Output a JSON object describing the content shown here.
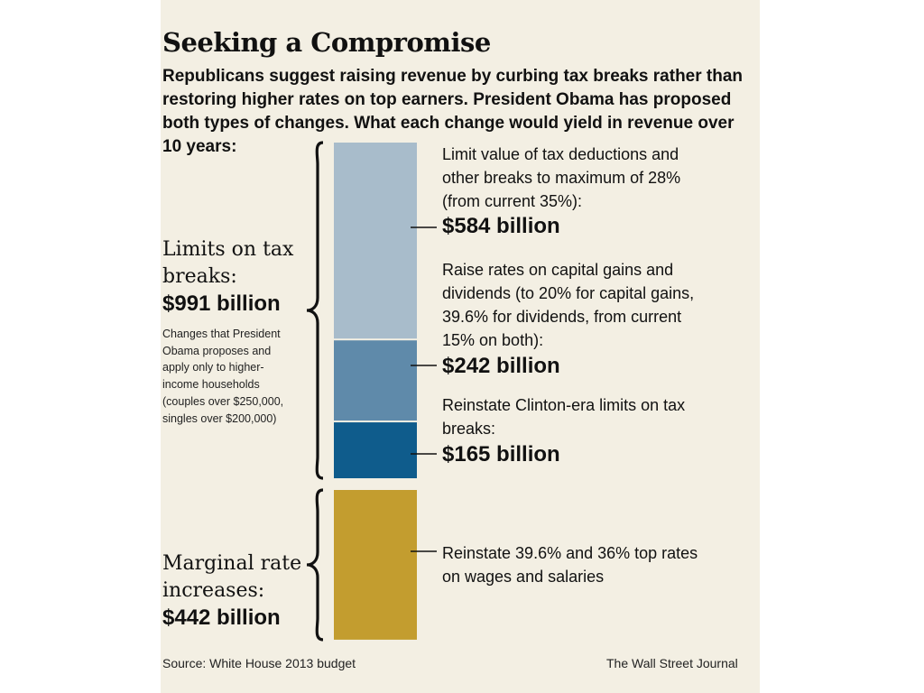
{
  "title": "Seeking a Compromise",
  "subtitle": "Republicans suggest raising revenue by curbing tax breaks rather than restoring higher rates on top earners. President Obama has proposed both types of changes. What each change would yield in revenue over 10 years:",
  "groups": [
    {
      "label_lines": [
        "Limits on tax",
        "breaks:"
      ],
      "total": "$991 billion",
      "note": "Changes that President Obama proposes and apply only to higher-income households (couples over $250,000, singles over $200,000)"
    },
    {
      "label_lines": [
        "Marginal rate",
        "increases:"
      ],
      "total": "$442 billion"
    }
  ],
  "items": [
    {
      "desc_lines": [
        "Limit value of tax deductions and",
        "other breaks to maximum of 28%",
        "(from current 35%):"
      ],
      "value_label": "$584 billion"
    },
    {
      "desc_lines": [
        "Raise rates on capital gains and",
        "dividends  (to 20% for capital gains,",
        "39.6% for dividends, from current",
        "15% on both):"
      ],
      "value_label": "$242 billion"
    },
    {
      "desc_lines": [
        "Reinstate Clinton-era limits on tax",
        "breaks:"
      ],
      "value_label": "$165 billion"
    },
    {
      "desc_lines": [
        "Reinstate 39.6% and 36% top rates",
        "on wages and salaries"
      ],
      "value_label": ""
    }
  ],
  "chart_data": {
    "type": "bar",
    "orientation": "stacked-vertical",
    "unit": "billion dollars",
    "groups": [
      {
        "name": "Limits on tax breaks",
        "total": 991,
        "segments": [
          {
            "label": "Limit value of tax deductions and other breaks to maximum of 28% (from current 35%)",
            "value": 584,
            "color": "#a8bccb"
          },
          {
            "label": "Raise rates on capital gains and dividends (to 20% for capital gains, 39.6% for dividends, from current 15% on both)",
            "value": 242,
            "color": "#5f8aaa"
          },
          {
            "label": "Reinstate Clinton-era limits on tax breaks",
            "value": 165,
            "color": "#0f5c8c"
          }
        ]
      },
      {
        "name": "Marginal rate increases",
        "total": 442,
        "segments": [
          {
            "label": "Reinstate 39.6% and 36% top rates on wages and salaries",
            "value": 442,
            "color": "#c39d2f"
          }
        ]
      }
    ]
  },
  "footer": {
    "source": "Source: White House 2013 budget",
    "credit": "The Wall Street Journal"
  }
}
